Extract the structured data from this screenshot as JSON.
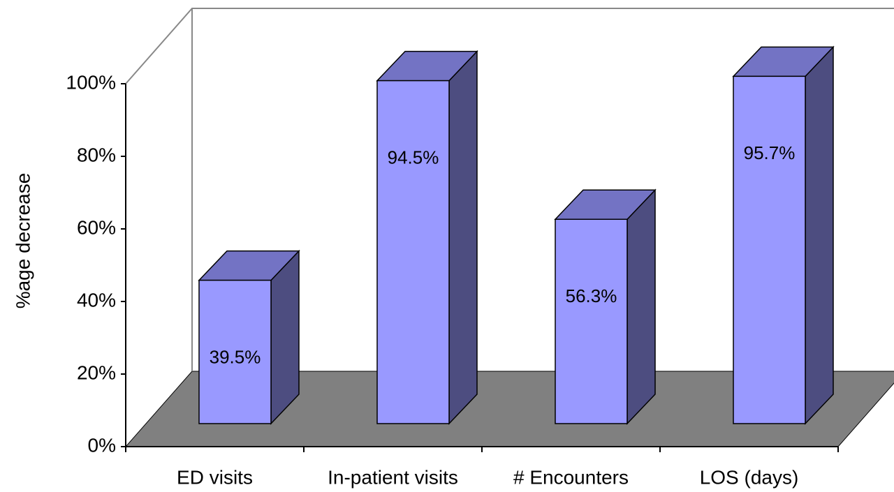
{
  "chart_data": {
    "type": "bar3d",
    "ylabel": "%age decrease",
    "categories": [
      "ED visits",
      "In-patient visits",
      "# Encounters",
      "LOS (days)"
    ],
    "values": [
      39.5,
      94.5,
      56.3,
      95.7
    ],
    "value_labels": [
      "39.5%",
      "94.5%",
      "56.3%",
      "95.7%"
    ],
    "color": "#9999ff",
    "ylim": [
      0,
      100
    ],
    "yticks": [
      {
        "value": 0,
        "label": "0%"
      },
      {
        "value": 20,
        "label": "20%"
      },
      {
        "value": 40,
        "label": "40%"
      },
      {
        "value": 60,
        "label": "60%"
      },
      {
        "value": 80,
        "label": "80%"
      },
      {
        "value": 100,
        "label": "100%"
      }
    ]
  }
}
